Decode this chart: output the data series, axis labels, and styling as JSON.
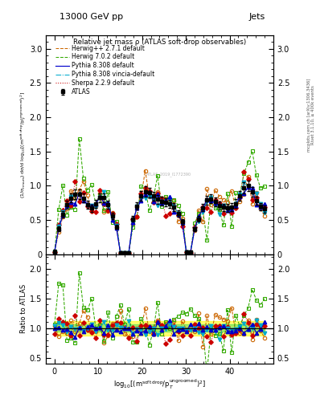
{
  "title_top": "13000 GeV pp",
  "title_right": "Jets",
  "plot_title": "Relative jet mass ρ (ATLAS soft-drop observables)",
  "xlabel": "log$_{10}$[(m$^{\\rm soft\\,drop}$/p$_T^{\\rm ungroomed}$)$^2$]",
  "ylabel_main": "(1/σ$_{\\rm resum}$) dσ/d log$_{10}$[(m$^{\\rm soft\\,drop}$/p$_T^{\\rm ungroomed}$)$^2$]",
  "ylabel_ratio": "Ratio to ATLAS",
  "right_label1": "Rivet 3.1.10, ≥ 400k events",
  "right_label2": "mcplots.cern.ch [arXiv:1306.3436]",
  "xlim": [
    -2,
    50
  ],
  "ylim_main": [
    0,
    3.2
  ],
  "ylim_ratio": [
    0.4,
    2.25
  ],
  "x_ticks": [
    0,
    10,
    20,
    30,
    40
  ],
  "y_ticks_main": [
    0,
    0.5,
    1.0,
    1.5,
    2.0,
    2.5,
    3.0
  ],
  "y_ticks_ratio": [
    0.5,
    1.0,
    1.5,
    2.0
  ],
  "colors": {
    "atlas": "#000000",
    "herwig271": "#cc6600",
    "herwig702": "#33aa00",
    "pythia308": "#0000cc",
    "pythia308v": "#00aacc",
    "sherpa229": "#cc0000"
  },
  "legend_entries": [
    "ATLAS",
    "Herwig++ 2.7.1 default",
    "Herwig 7.0.2 default",
    "Pythia 8.308 default",
    "Pythia 8.308 vincia-default",
    "Sherpa 2.2.9 default"
  ]
}
